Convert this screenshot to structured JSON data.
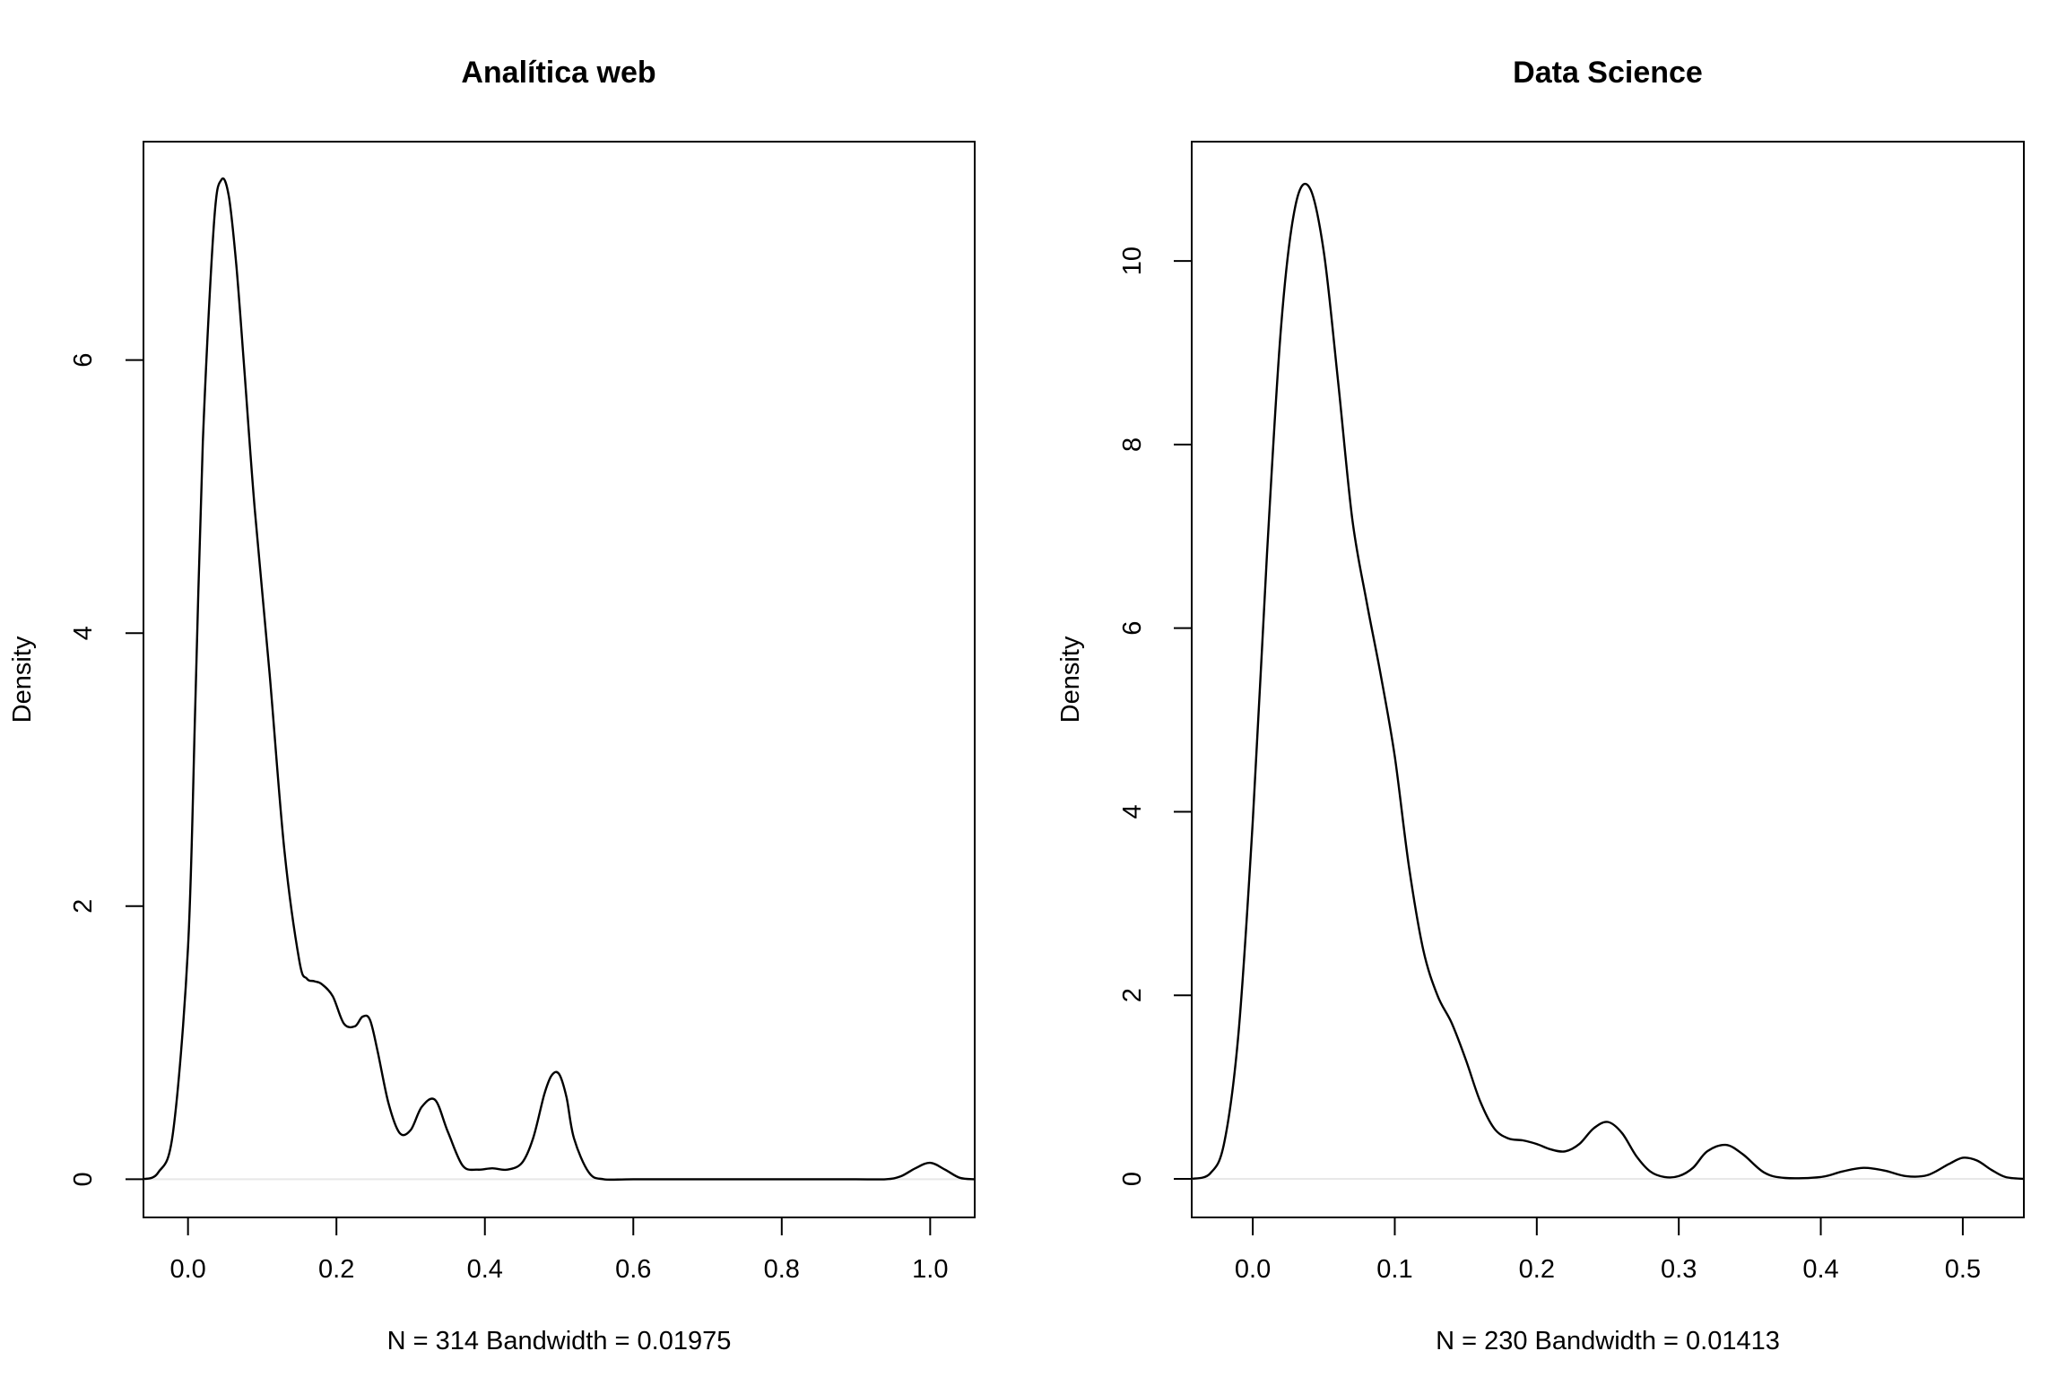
{
  "chart_data": [
    {
      "type": "line",
      "title": "Analítica web",
      "ylabel": "Density",
      "xlabel": "N = 314   Bandwidth = 0.01975",
      "xlim": [
        -0.06,
        1.06
      ],
      "ylim": [
        -0.28,
        7.6
      ],
      "xticks": [
        "0.0",
        "0.2",
        "0.4",
        "0.6",
        "0.8",
        "1.0"
      ],
      "yticks": [
        "0",
        "2",
        "4",
        "6"
      ],
      "grid": false,
      "series": [
        {
          "x": [
            -0.06,
            -0.04,
            -0.02,
            0.0,
            0.01,
            0.02,
            0.035,
            0.045,
            0.055,
            0.065,
            0.075,
            0.09,
            0.11,
            0.13,
            0.15,
            0.16,
            0.17,
            0.18,
            0.195,
            0.21,
            0.225,
            0.235,
            0.245,
            0.255,
            0.27,
            0.285,
            0.3,
            0.315,
            0.333,
            0.35,
            0.37,
            0.39,
            0.41,
            0.43,
            0.45,
            0.465,
            0.48,
            0.49,
            0.5,
            0.51,
            0.52,
            0.54,
            0.56,
            0.6,
            0.7,
            0.8,
            0.9,
            0.94,
            0.96,
            0.98,
            1.0,
            1.02,
            1.04,
            1.06
          ],
          "y": [
            0.0,
            0.05,
            0.35,
            1.7,
            3.5,
            5.4,
            7.0,
            7.32,
            7.2,
            6.7,
            6.0,
            4.9,
            3.7,
            2.4,
            1.6,
            1.47,
            1.45,
            1.43,
            1.34,
            1.14,
            1.12,
            1.19,
            1.17,
            0.95,
            0.56,
            0.34,
            0.36,
            0.53,
            0.58,
            0.35,
            0.1,
            0.07,
            0.08,
            0.07,
            0.12,
            0.3,
            0.62,
            0.76,
            0.77,
            0.6,
            0.3,
            0.05,
            0.0,
            0.0,
            0.0,
            0.0,
            0.0,
            0.0,
            0.02,
            0.08,
            0.12,
            0.07,
            0.01,
            0.0
          ]
        }
      ]
    },
    {
      "type": "line",
      "title": "Data Science",
      "ylabel": "Density",
      "xlabel": "N = 230   Bandwidth = 0.01413",
      "xlim": [
        -0.043,
        0.543
      ],
      "ylim": [
        -0.42,
        11.3
      ],
      "xticks": [
        "0.0",
        "0.1",
        "0.2",
        "0.3",
        "0.4",
        "0.5"
      ],
      "yticks": [
        "0",
        "2",
        "4",
        "6",
        "8",
        "10"
      ],
      "grid": false,
      "series": [
        {
          "x": [
            -0.043,
            -0.03,
            -0.02,
            -0.01,
            0.0,
            0.01,
            0.02,
            0.03,
            0.04,
            0.05,
            0.06,
            0.07,
            0.08,
            0.09,
            0.1,
            0.11,
            0.12,
            0.13,
            0.14,
            0.15,
            0.16,
            0.17,
            0.18,
            0.19,
            0.2,
            0.21,
            0.22,
            0.23,
            0.24,
            0.25,
            0.26,
            0.27,
            0.28,
            0.29,
            0.3,
            0.31,
            0.32,
            0.333,
            0.345,
            0.36,
            0.375,
            0.4,
            0.415,
            0.43,
            0.445,
            0.46,
            0.475,
            0.49,
            0.5,
            0.51,
            0.52,
            0.53,
            0.543
          ],
          "y": [
            0.0,
            0.06,
            0.4,
            1.6,
            3.9,
            6.8,
            9.3,
            10.6,
            10.8,
            10.1,
            8.7,
            7.2,
            6.3,
            5.5,
            4.6,
            3.4,
            2.5,
            2.0,
            1.7,
            1.3,
            0.85,
            0.55,
            0.44,
            0.42,
            0.38,
            0.32,
            0.3,
            0.38,
            0.55,
            0.62,
            0.5,
            0.25,
            0.08,
            0.02,
            0.03,
            0.12,
            0.3,
            0.37,
            0.27,
            0.07,
            0.01,
            0.02,
            0.08,
            0.12,
            0.09,
            0.03,
            0.04,
            0.16,
            0.23,
            0.2,
            0.1,
            0.02,
            0.0
          ]
        }
      ]
    }
  ]
}
